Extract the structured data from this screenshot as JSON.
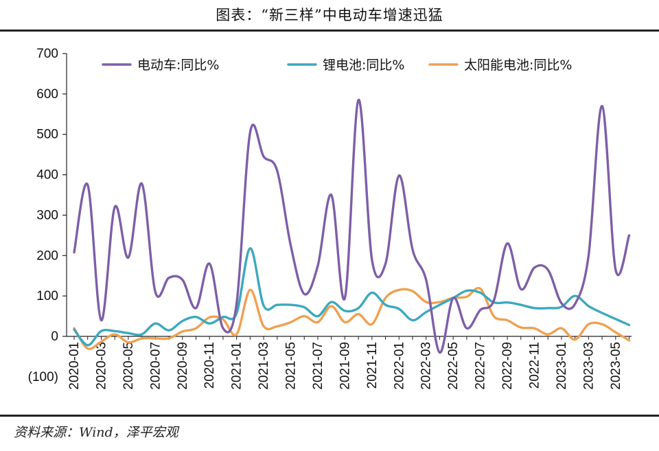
{
  "title": "图表：“新三样”中电动车增速迅猛",
  "source": "资料来源：Wind，泽平宏观",
  "chart_data": {
    "type": "line",
    "ylim": [
      -100,
      700
    ],
    "yticks": [
      {
        "value": 700,
        "label": "700",
        "color": "#111111"
      },
      {
        "value": 600,
        "label": "600",
        "color": "#111111"
      },
      {
        "value": 500,
        "label": "500",
        "color": "#111111"
      },
      {
        "value": 400,
        "label": "400",
        "color": "#111111"
      },
      {
        "value": 300,
        "label": "300",
        "color": "#111111"
      },
      {
        "value": 200,
        "label": "200",
        "color": "#111111"
      },
      {
        "value": 100,
        "label": "100",
        "color": "#111111"
      },
      {
        "value": 0,
        "label": "0",
        "color": "#111111"
      },
      {
        "value": -100,
        "label": "(100)",
        "color": "#cc0000"
      }
    ],
    "xtick_labels": [
      "2020-01",
      "2020-03",
      "2020-05",
      "2020-07",
      "2020-09",
      "2020-11",
      "2021-01",
      "2021-03",
      "2021-05",
      "2021-07",
      "2021-09",
      "2021-11",
      "2022-01",
      "2022-03",
      "2022-05",
      "2022-07",
      "2022-09",
      "2022-11",
      "2023-01",
      "2023-03",
      "2023-05"
    ],
    "categories": [
      "2020-01",
      "2020-02",
      "2020-03",
      "2020-04",
      "2020-05",
      "2020-06",
      "2020-07",
      "2020-08",
      "2020-09",
      "2020-10",
      "2020-11",
      "2020-12",
      "2021-01",
      "2021-02",
      "2021-03",
      "2021-04",
      "2021-05",
      "2021-06",
      "2021-07",
      "2021-08",
      "2021-09",
      "2021-10",
      "2021-11",
      "2021-12",
      "2022-01",
      "2022-02",
      "2022-03",
      "2022-04",
      "2022-05",
      "2022-06",
      "2022-07",
      "2022-08",
      "2022-09",
      "2022-10",
      "2022-11",
      "2022-12",
      "2023-01",
      "2023-02",
      "2023-03",
      "2023-04",
      "2023-05",
      "2023-06"
    ],
    "series": [
      {
        "name": "电动车:同比%",
        "color": "#7e5ea8",
        "values": [
          208,
          375,
          40,
          320,
          195,
          378,
          110,
          145,
          140,
          70,
          180,
          20,
          80,
          505,
          445,
          410,
          225,
          105,
          175,
          350,
          95,
          585,
          190,
          180,
          398,
          215,
          140,
          -40,
          95,
          20,
          65,
          88,
          230,
          117,
          170,
          165,
          82,
          80,
          200,
          570,
          165,
          250
        ]
      },
      {
        "name": "锂电池:同比%",
        "color": "#3ca8bf",
        "values": [
          17,
          -22,
          13,
          13,
          8,
          5,
          32,
          15,
          38,
          48,
          32,
          48,
          57,
          218,
          76,
          78,
          78,
          72,
          50,
          85,
          63,
          70,
          108,
          78,
          68,
          40,
          60,
          78,
          95,
          113,
          108,
          84,
          84,
          78,
          70,
          70,
          73,
          100,
          75,
          58,
          43,
          28
        ]
      },
      {
        "name": "太阳能电池:同比%",
        "color": "#f0a050",
        "values": [
          20,
          -30,
          -13,
          5,
          -15,
          -5,
          -5,
          -5,
          12,
          20,
          47,
          42,
          5,
          115,
          25,
          25,
          35,
          50,
          35,
          75,
          35,
          55,
          30,
          95,
          115,
          112,
          85,
          85,
          95,
          98,
          118,
          50,
          40,
          22,
          20,
          5,
          20,
          -8,
          30,
          30,
          10,
          -10
        ]
      }
    ]
  }
}
